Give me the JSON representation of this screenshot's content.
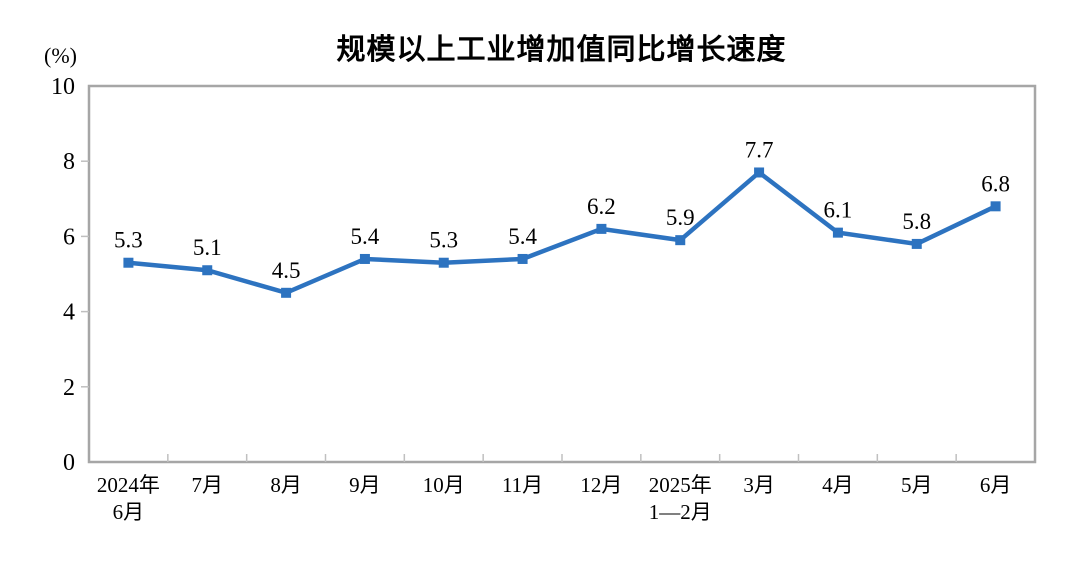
{
  "chart_data": {
    "type": "line",
    "title": "规模以上工业增加值同比增长速度",
    "unit_label": "(%)",
    "categories": [
      "2024年6月",
      "7月",
      "8月",
      "9月",
      "10月",
      "11月",
      "12月",
      "2025年1—2月",
      "3月",
      "4月",
      "5月",
      "6月"
    ],
    "category_label_lines": [
      [
        "2024年",
        "6月"
      ],
      [
        "7月"
      ],
      [
        "8月"
      ],
      [
        "9月"
      ],
      [
        "10月"
      ],
      [
        "11月"
      ],
      [
        "12月"
      ],
      [
        "2025年",
        "1—2月"
      ],
      [
        "3月"
      ],
      [
        "4月"
      ],
      [
        "5月"
      ],
      [
        "6月"
      ]
    ],
    "values": [
      5.3,
      5.1,
      4.5,
      5.4,
      5.3,
      5.4,
      6.2,
      5.9,
      7.7,
      6.1,
      5.8,
      6.8
    ],
    "data_labels": [
      "5.3",
      "5.1",
      "4.5",
      "5.4",
      "5.3",
      "5.4",
      "6.2",
      "5.9",
      "7.7",
      "6.1",
      "5.8",
      "6.8"
    ],
    "ylim": [
      0,
      10
    ],
    "y_ticks": [
      0,
      2,
      4,
      6,
      8,
      10
    ],
    "grid": false,
    "legend": "none",
    "marker": "square"
  },
  "colors": {
    "line": "#2D73C0",
    "plot_border": "#A6A6A6",
    "x_tick": "#C0C0C0",
    "y_tick": "#BFBFBF",
    "text": "#000000",
    "background": "#FFFFFF"
  }
}
